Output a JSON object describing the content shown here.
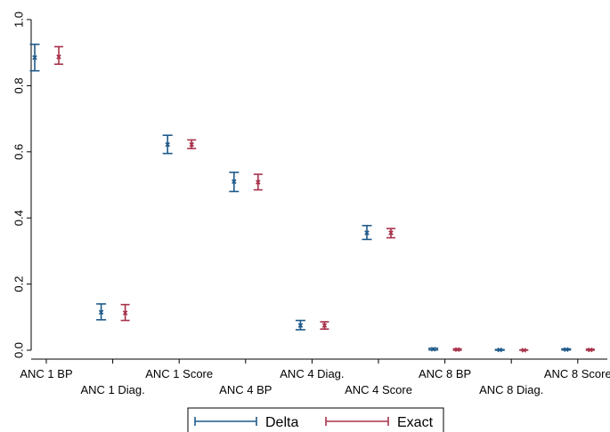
{
  "chart_data": {
    "type": "scatter",
    "title": "",
    "xlabel": "",
    "ylabel": "",
    "ylim": [
      0,
      1
    ],
    "yticks": [
      "0.0",
      "0.2",
      "0.4",
      "0.6",
      "0.8",
      "1.0"
    ],
    "categories": [
      "ANC 1 BP",
      "ANC 1 Diag.",
      "ANC 1 Score",
      "ANC 4 BP",
      "ANC 4 Diag.",
      "ANC 4 Score",
      "ANC 8 BP",
      "ANC 8 Diag.",
      "ANC 8 Score"
    ],
    "grid": false,
    "legend": "bottom",
    "series": [
      {
        "name": "Delta",
        "color": "#1f5a8a",
        "values": [
          0.885,
          0.115,
          0.622,
          0.51,
          0.075,
          0.355,
          0.003,
          0.001,
          0.002
        ],
        "lower": [
          0.845,
          0.092,
          0.595,
          0.48,
          0.062,
          0.335,
          0.001,
          0.0,
          0.001
        ],
        "upper": [
          0.925,
          0.14,
          0.65,
          0.538,
          0.09,
          0.377,
          0.006,
          0.002,
          0.004
        ]
      },
      {
        "name": "Exact",
        "color": "#a8324a",
        "values": [
          0.887,
          0.113,
          0.622,
          0.508,
          0.075,
          0.355,
          0.002,
          0.0,
          0.001
        ],
        "lower": [
          0.865,
          0.09,
          0.61,
          0.485,
          0.064,
          0.34,
          0.0,
          0.0,
          0.0
        ],
        "upper": [
          0.918,
          0.138,
          0.636,
          0.532,
          0.086,
          0.368,
          0.004,
          0.001,
          0.003
        ]
      }
    ]
  }
}
